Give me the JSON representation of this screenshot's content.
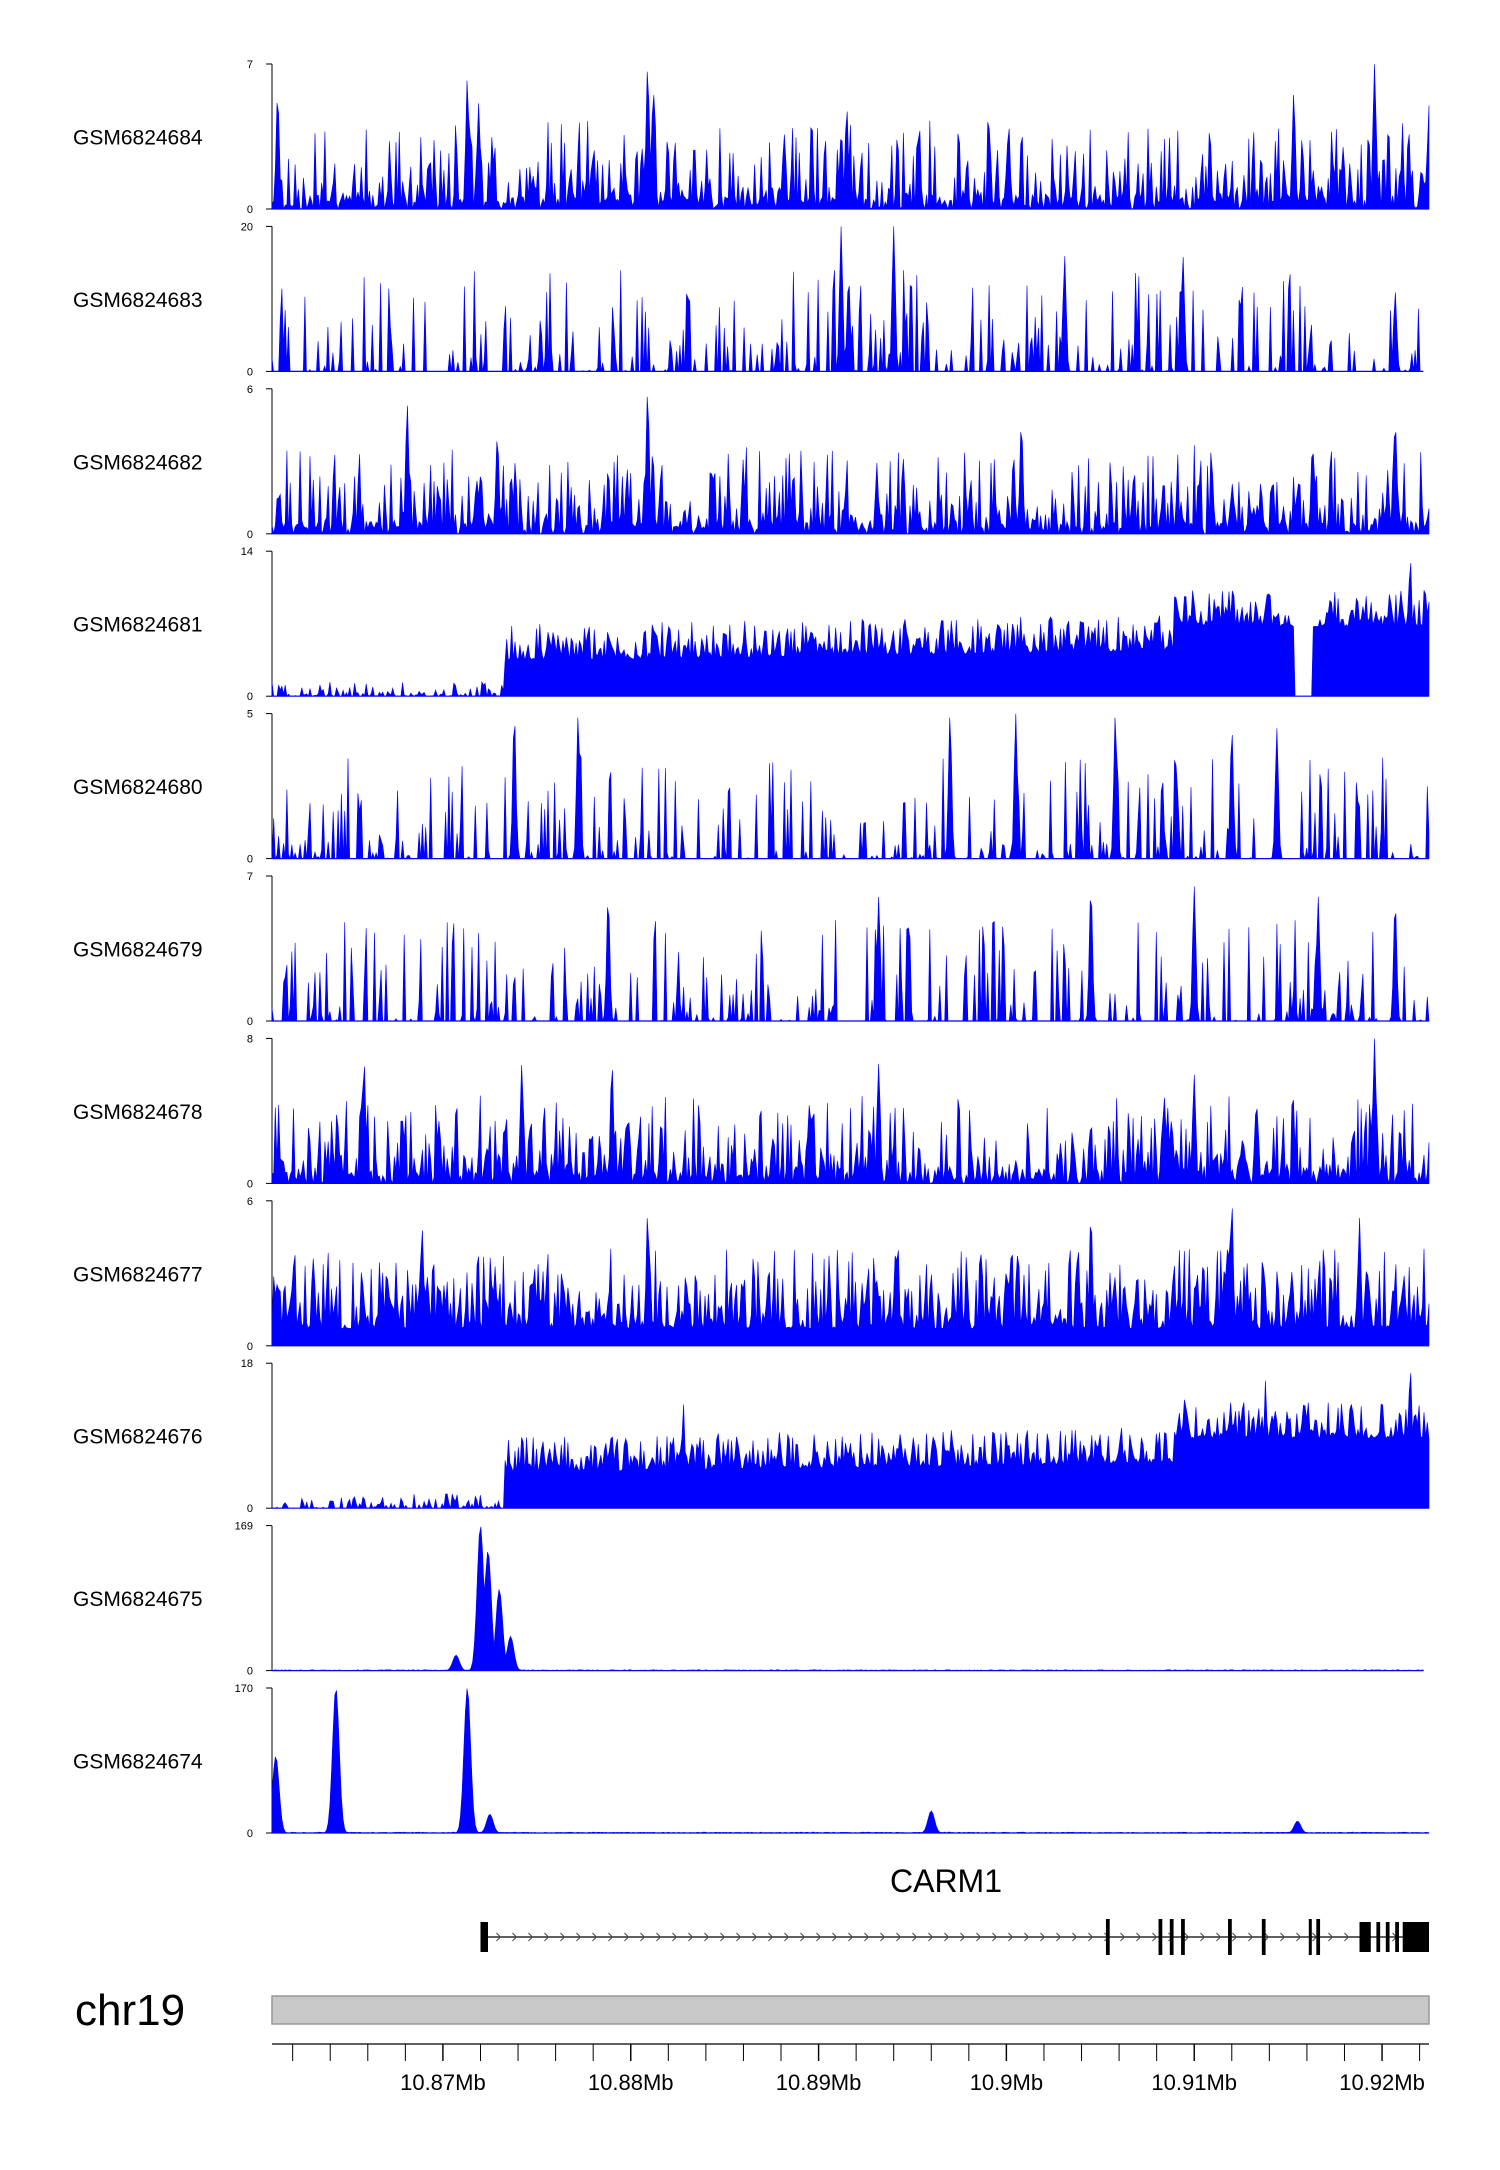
{
  "chart_data": {
    "type": "area",
    "chromosome": "chr19",
    "x_range_mb": [
      10.8609,
      10.9225
    ],
    "x_ticks": [
      {
        "value": 10.87,
        "label": "10.87Mb"
      },
      {
        "value": 10.88,
        "label": "10.88Mb"
      },
      {
        "value": 10.89,
        "label": "10.89Mb"
      },
      {
        "value": 10.9,
        "label": "10.9Mb"
      },
      {
        "value": 10.91,
        "label": "10.91Mb"
      },
      {
        "value": 10.92,
        "label": "10.92Mb"
      }
    ],
    "fill_color": "#0000ff",
    "tracks": [
      {
        "name": "GSM6824684",
        "ymax": 7,
        "ymax_label": "7",
        "ymin_label": "0",
        "profile": "noisy",
        "seed": 11,
        "peaks": [
          [
            10.8612,
            5.6
          ],
          [
            10.8713,
            6.3
          ],
          [
            10.8719,
            5.1
          ],
          [
            10.8809,
            6.9
          ],
          [
            10.8812,
            5.8
          ],
          [
            10.8915,
            4.9
          ],
          [
            10.9196,
            7.0
          ],
          [
            10.9153,
            5.6
          ],
          [
            10.9225,
            5.0
          ]
        ]
      },
      {
        "name": "GSM6824683",
        "ymax": 20,
        "ymax_label": "20",
        "ymin_label": "0",
        "profile": "sparse",
        "seed": 23,
        "end_mb": 10.9222,
        "peaks": [
          [
            10.8912,
            20.0
          ],
          [
            10.8916,
            13.0
          ],
          [
            10.894,
            20.0
          ],
          [
            10.9031,
            16.0
          ],
          [
            10.9094,
            16.0
          ],
          [
            10.9207,
            11.0
          ]
        ]
      },
      {
        "name": "GSM6824682",
        "ymax": 6,
        "ymax_label": "6",
        "ymin_label": "0",
        "profile": "noisy",
        "seed": 37,
        "peaks": [
          [
            10.8681,
            5.4
          ],
          [
            10.8809,
            5.9
          ],
          [
            10.8729,
            4.1
          ],
          [
            10.9008,
            4.6
          ],
          [
            10.9207,
            4.7
          ],
          [
            10.9163,
            3.7
          ]
        ]
      },
      {
        "name": "GSM6824681",
        "ymax": 14,
        "ymax_label": "14",
        "ymin_label": "0",
        "profile": "ramp",
        "seed": 41,
        "peaks": [
          [
            10.9095,
            10.0
          ],
          [
            10.9215,
            13.8
          ],
          [
            10.9228,
            12.0
          ],
          [
            10.9172,
            9.5
          ],
          [
            10.9119,
            8.5
          ]
        ],
        "troughs": [
          [
            10.9153,
            10.9163
          ]
        ]
      },
      {
        "name": "GSM6824680",
        "ymax": 5,
        "ymax_label": "5",
        "ymin_label": "0",
        "profile": "sparse",
        "seed": 53,
        "peaks": [
          [
            10.8738,
            5.0
          ],
          [
            10.8772,
            5.0
          ],
          [
            10.897,
            5.0
          ],
          [
            10.9005,
            5.0
          ],
          [
            10.9058,
            5.0
          ],
          [
            10.912,
            4.5
          ],
          [
            10.9144,
            4.5
          ]
        ]
      },
      {
        "name": "GSM6824679",
        "ymax": 7,
        "ymax_label": "7",
        "ymin_label": "0",
        "profile": "sparse",
        "seed": 67,
        "peaks": [
          [
            10.8788,
            6.0
          ],
          [
            10.8932,
            6.0
          ],
          [
            10.9045,
            6.5
          ],
          [
            10.91,
            6.5
          ],
          [
            10.9166,
            6.0
          ],
          [
            10.9207,
            5.8
          ]
        ]
      },
      {
        "name": "GSM6824678",
        "ymax": 8,
        "ymax_label": "8",
        "ymin_label": "0",
        "profile": "noisy",
        "seed": 71,
        "peaks": [
          [
            10.8658,
            6.8
          ],
          [
            10.8742,
            6.6
          ],
          [
            10.879,
            6.6
          ],
          [
            10.8932,
            6.6
          ],
          [
            10.9196,
            8.0
          ],
          [
            10.91,
            6.0
          ]
        ]
      },
      {
        "name": "GSM6824677",
        "ymax": 6,
        "ymax_label": "6",
        "ymin_label": "0",
        "profile": "dense",
        "seed": 83,
        "peaks": [
          [
            10.8809,
            5.5
          ],
          [
            10.9045,
            5.5
          ],
          [
            10.912,
            6.0
          ],
          [
            10.9188,
            5.3
          ],
          [
            10.8689,
            4.8
          ]
        ]
      },
      {
        "name": "GSM6824676",
        "ymax": 18,
        "ymax_label": "18",
        "ymin_label": "0",
        "profile": "ramp",
        "seed": 97,
        "peaks": [
          [
            10.8828,
            13.0
          ],
          [
            10.9095,
            14.0
          ],
          [
            10.9138,
            16.0
          ],
          [
            10.9215,
            18.0
          ],
          [
            10.92,
            14.0
          ]
        ]
      },
      {
        "name": "GSM6824675",
        "ymax": 169,
        "ymax_label": "169",
        "ymin_label": "0",
        "profile": "flat",
        "seed": 101,
        "end_mb": 10.9222,
        "peaks": [
          [
            10.872,
            169.0
          ],
          [
            10.8724,
            140.0
          ],
          [
            10.873,
            95.0
          ],
          [
            10.8736,
            40.0
          ],
          [
            10.8707,
            18.0
          ]
        ]
      },
      {
        "name": "GSM6824674",
        "ymax": 170,
        "ymax_label": "170",
        "ymin_label": "0",
        "profile": "flat",
        "seed": 113,
        "peaks": [
          [
            10.8611,
            90.0
          ],
          [
            10.8643,
            170.0
          ],
          [
            10.8713,
            170.0
          ],
          [
            10.8725,
            22.0
          ],
          [
            10.896,
            26.0
          ],
          [
            10.9155,
            14.0
          ]
        ]
      }
    ],
    "gene": {
      "name": "CARM1",
      "strand": "+",
      "start_mb": 10.872,
      "end_mb": 10.9228,
      "exons": [
        [
          10.872,
          10.8724
        ],
        [
          10.9053,
          10.9055
        ],
        [
          10.9081,
          10.9083
        ],
        [
          10.9087,
          10.9089
        ],
        [
          10.9093,
          10.9095
        ],
        [
          10.9118,
          10.912
        ],
        [
          10.9136,
          10.9138
        ],
        [
          10.9161,
          10.9162
        ],
        [
          10.9165,
          10.9167
        ],
        [
          10.9188,
          10.9194
        ],
        [
          10.9197,
          10.9199
        ],
        [
          10.9202,
          10.9204
        ],
        [
          10.9207,
          10.9209
        ],
        [
          10.9211,
          10.9228
        ]
      ]
    }
  }
}
